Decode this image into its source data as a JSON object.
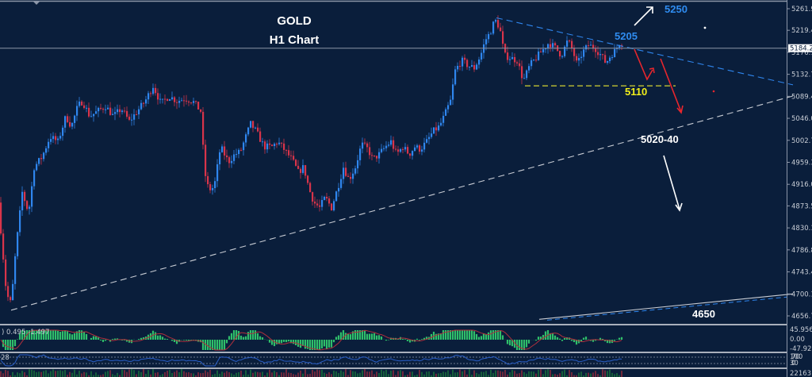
{
  "header": {
    "title": "GOLD",
    "subtitle": "H1 Chart"
  },
  "colors": {
    "background": "#0a1e3b",
    "bull": "#2f86ee",
    "bear": "#d8344a",
    "grid_line": "#8c96a8",
    "axis_text": "#c9ced6",
    "trend_blue": "#2f86ee",
    "trend_white": "#c8ccd4",
    "support_yellow": "#a5a934",
    "arrow_red": "#e8262d",
    "arrow_white": "#ffffff",
    "label_blue": "#2f8cf0",
    "label_yellow": "#f2ef1a",
    "osc_bar": "#2fbf6a",
    "osc_signal": "#b0303c",
    "rsi_line": "#2a5fc8",
    "vol_up": "#1f8a3c",
    "vol_down": "#b0303c"
  },
  "price_axis": {
    "ticks": [
      "5261.95",
      "5219.45",
      "5176.10",
      "5132.75",
      "5089.40",
      "5046.05",
      "5002.70",
      "4959.35",
      "4916.00",
      "4873.50",
      "4830.15",
      "4786.80",
      "4743.45",
      "4700.10",
      "4656.75"
    ],
    "current_price": "5184.23"
  },
  "annotations": {
    "target_up": "5250",
    "resistance": "5205",
    "support": "5110",
    "target_zone": "5020-40",
    "target_down": "4650"
  },
  "oscillator": {
    "label": ") 0.495 -1.497",
    "ticks": [
      "45.956",
      "0.00",
      "-47.926"
    ]
  },
  "rsi": {
    "label": "28",
    "ticks": [
      "100",
      "70",
      "30",
      "0"
    ]
  },
  "volume": {
    "ticks": [
      "22163",
      "0"
    ]
  },
  "chart_data": {
    "type": "candlestick",
    "title": "GOLD H1 Chart",
    "instrument": "GOLD",
    "timeframe": "H1",
    "ylim": [
      4656.75,
      5261.95
    ],
    "current_price": 5184.23,
    "price_path": [
      [
        0,
        4880
      ],
      [
        10,
        4700
      ],
      [
        16,
        4680
      ],
      [
        22,
        4790
      ],
      [
        30,
        4900
      ],
      [
        38,
        4860
      ],
      [
        45,
        4950
      ],
      [
        55,
        4970
      ],
      [
        65,
        5010
      ],
      [
        75,
        5000
      ],
      [
        85,
        5050
      ],
      [
        92,
        5030
      ],
      [
        100,
        5070
      ],
      [
        106,
        5080
      ],
      [
        115,
        5050
      ],
      [
        125,
        5060
      ],
      [
        135,
        5070
      ],
      [
        145,
        5050
      ],
      [
        155,
        5065
      ],
      [
        165,
        5040
      ],
      [
        175,
        5060
      ],
      [
        185,
        5080
      ],
      [
        195,
        5110
      ],
      [
        205,
        5075
      ],
      [
        215,
        5090
      ],
      [
        225,
        5080
      ],
      [
        235,
        5085
      ],
      [
        245,
        5080
      ],
      [
        255,
        5060
      ],
      [
        260,
        4940
      ],
      [
        265,
        4905
      ],
      [
        272,
        4910
      ],
      [
        280,
        4990
      ],
      [
        290,
        4960
      ],
      [
        298,
        4975
      ],
      [
        305,
        4980
      ],
      [
        312,
        5010
      ],
      [
        318,
        5035
      ],
      [
        325,
        5020
      ],
      [
        335,
        4990
      ],
      [
        345,
        4990
      ],
      [
        352,
        5000
      ],
      [
        360,
        4985
      ],
      [
        370,
        4965
      ],
      [
        378,
        4940
      ],
      [
        385,
        4950
      ],
      [
        392,
        4905
      ],
      [
        398,
        4880
      ],
      [
        405,
        4870
      ],
      [
        412,
        4890
      ],
      [
        420,
        4870
      ],
      [
        428,
        4910
      ],
      [
        435,
        4950
      ],
      [
        442,
        4925
      ],
      [
        450,
        4950
      ],
      [
        458,
        4995
      ],
      [
        466,
        4985
      ],
      [
        472,
        4965
      ],
      [
        480,
        4975
      ],
      [
        488,
        4990
      ],
      [
        495,
        5000
      ],
      [
        502,
        4975
      ],
      [
        510,
        4990
      ],
      [
        518,
        4975
      ],
      [
        525,
        4990
      ],
      [
        532,
        4985
      ],
      [
        540,
        5000
      ],
      [
        548,
        5020
      ],
      [
        556,
        5030
      ],
      [
        562,
        5050
      ],
      [
        570,
        5080
      ],
      [
        576,
        5140
      ],
      [
        584,
        5160
      ],
      [
        592,
        5150
      ],
      [
        600,
        5145
      ],
      [
        608,
        5170
      ],
      [
        614,
        5200
      ],
      [
        620,
        5215
      ],
      [
        626,
        5240
      ],
      [
        632,
        5225
      ],
      [
        638,
        5170
      ],
      [
        646,
        5165
      ],
      [
        654,
        5160
      ],
      [
        662,
        5120
      ],
      [
        670,
        5150
      ],
      [
        678,
        5165
      ],
      [
        686,
        5180
      ],
      [
        694,
        5195
      ],
      [
        702,
        5185
      ],
      [
        710,
        5170
      ],
      [
        718,
        5200
      ],
      [
        724,
        5180
      ],
      [
        730,
        5150
      ],
      [
        736,
        5175
      ],
      [
        744,
        5190
      ],
      [
        752,
        5185
      ],
      [
        760,
        5170
      ],
      [
        766,
        5155
      ],
      [
        772,
        5170
      ],
      [
        778,
        5180
      ],
      [
        783,
        5195
      ]
    ],
    "trendlines": [
      {
        "name": "descending-resistance",
        "from": [
          626,
          5244
        ],
        "to": [
          1000,
          5112
        ],
        "style": "dashed",
        "color": "blue"
      },
      {
        "name": "ascending-support",
        "from": [
          14,
          4668
        ],
        "to": [
          1000,
          5090
        ],
        "style": "dashed",
        "color": "white"
      },
      {
        "name": "support-5110",
        "from": [
          662,
          5110
        ],
        "to": [
          852,
          5110
        ],
        "style": "dashed",
        "color": "yellow"
      },
      {
        "name": "long-term-support",
        "from": [
          680,
          4650
        ],
        "to": [
          1000,
          4700
        ],
        "style": "solid",
        "color": "white"
      }
    ],
    "annotations": [
      {
        "text": "5250",
        "meaning": "upside target"
      },
      {
        "text": "5205",
        "meaning": "resistance"
      },
      {
        "text": "5110",
        "meaning": "support"
      },
      {
        "text": "5020-40",
        "meaning": "downside target zone"
      },
      {
        "text": "4650",
        "meaning": "extended downside target"
      }
    ],
    "indicators": [
      {
        "name": "oscillator",
        "values_shown": [
          0.495,
          -1.497
        ],
        "range": [
          -47.926,
          45.956
        ]
      },
      {
        "name": "rsi",
        "levels": [
          100,
          70,
          30,
          0
        ],
        "value_shown": 28
      },
      {
        "name": "volume",
        "max": 22163
      }
    ]
  }
}
